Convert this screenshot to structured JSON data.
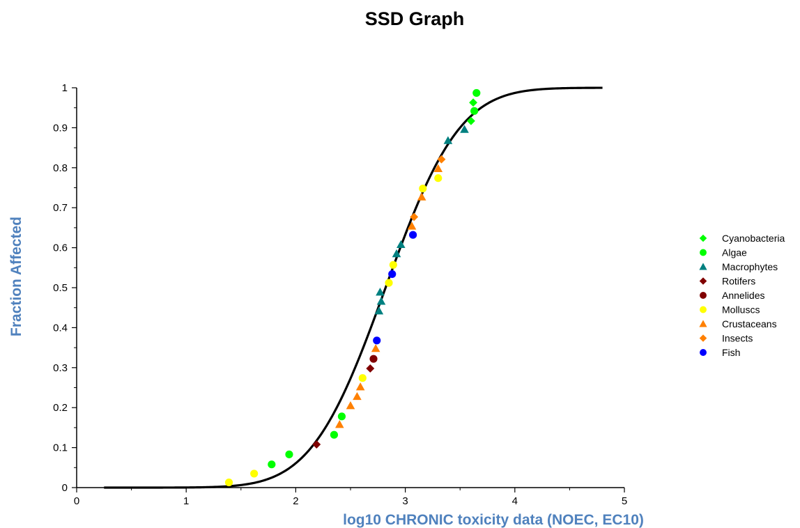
{
  "chart_data": {
    "type": "scatter",
    "title": "SSD Graph",
    "xlabel": "log10 CHRONIC toxicity data (NOEC, EC10)",
    "ylabel": "Fraction Affected",
    "xlim": [
      0,
      5
    ],
    "ylim": [
      0,
      1
    ],
    "xticks": [
      "0",
      "1",
      "2",
      "3",
      "4",
      "5"
    ],
    "yticks": [
      "0",
      "0.1",
      "0.2",
      "0.3",
      "0.4",
      "0.5",
      "0.6",
      "0.7",
      "0.8",
      "0.9",
      "1"
    ],
    "grid": false,
    "legend_position": "right",
    "curve": {
      "type": "cumulative-normal",
      "mean": 2.82,
      "sd": 0.53,
      "x_range": [
        0.25,
        4.8
      ],
      "color": "#000000"
    },
    "series": [
      {
        "name": "Cyanobacteria",
        "marker": "diamond",
        "color": "#00ff00",
        "points": [
          [
            3.6,
            0.917
          ],
          [
            3.62,
            0.963
          ]
        ]
      },
      {
        "name": "Algae",
        "marker": "circle",
        "color": "#00ff00",
        "points": [
          [
            1.78,
            0.058
          ],
          [
            1.94,
            0.083
          ],
          [
            2.35,
            0.132
          ],
          [
            2.42,
            0.178
          ],
          [
            3.63,
            0.942
          ],
          [
            3.65,
            0.987
          ]
        ]
      },
      {
        "name": "Macrophytes",
        "marker": "triangle",
        "color": "#008080",
        "points": [
          [
            2.76,
            0.442
          ],
          [
            2.78,
            0.466
          ],
          [
            2.77,
            0.489
          ],
          [
            2.92,
            0.585
          ],
          [
            2.96,
            0.608
          ],
          [
            3.39,
            0.868
          ],
          [
            3.54,
            0.896
          ]
        ]
      },
      {
        "name": "Rotifers",
        "marker": "diamond",
        "color": "#800000",
        "points": [
          [
            2.19,
            0.108
          ],
          [
            2.68,
            0.298
          ]
        ]
      },
      {
        "name": "Annelides",
        "marker": "circle",
        "color": "#800000",
        "points": [
          [
            2.71,
            0.322
          ]
        ]
      },
      {
        "name": "Molluscs",
        "marker": "circle",
        "color": "#ffff00",
        "points": [
          [
            1.39,
            0.013
          ],
          [
            1.62,
            0.035
          ],
          [
            2.61,
            0.274
          ],
          [
            2.85,
            0.512
          ],
          [
            2.89,
            0.557
          ],
          [
            3.16,
            0.748
          ],
          [
            3.3,
            0.774
          ]
        ]
      },
      {
        "name": "Crustaceans",
        "marker": "triangle",
        "color": "#ff8000",
        "points": [
          [
            2.4,
            0.158
          ],
          [
            2.5,
            0.205
          ],
          [
            2.56,
            0.228
          ],
          [
            2.59,
            0.252
          ],
          [
            2.73,
            0.348
          ],
          [
            3.06,
            0.654
          ],
          [
            3.15,
            0.727
          ],
          [
            3.3,
            0.798
          ]
        ]
      },
      {
        "name": "Insects",
        "marker": "diamond",
        "color": "#ff8000",
        "points": [
          [
            3.08,
            0.677
          ],
          [
            3.33,
            0.821
          ]
        ]
      },
      {
        "name": "Fish",
        "marker": "circle",
        "color": "#0000ff",
        "points": [
          [
            2.74,
            0.368
          ],
          [
            2.88,
            0.534
          ],
          [
            3.07,
            0.632
          ]
        ]
      }
    ]
  }
}
